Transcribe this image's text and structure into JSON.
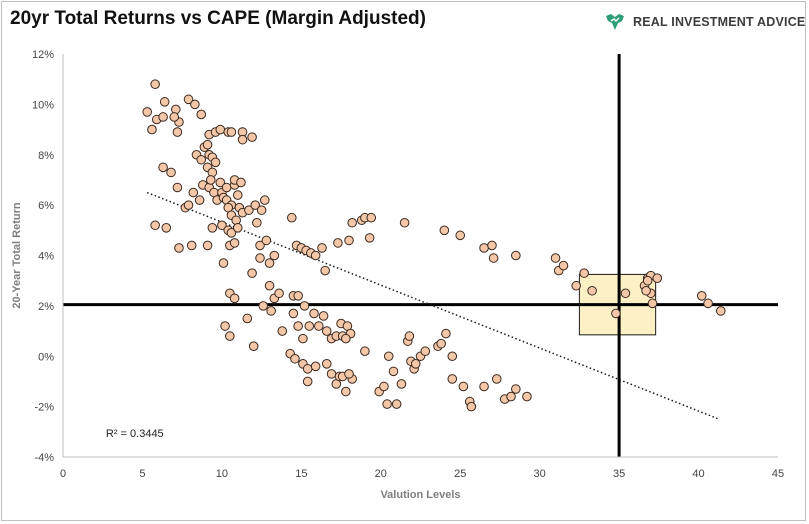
{
  "title": "20yr Total Returns vs CAPE (Margin Adjusted)",
  "brand": {
    "name": "REAL INVESTMENT ADVICE",
    "logo_icon": "bull-chart-icon",
    "logo_color": "#2e9e78"
  },
  "chart_data": {
    "type": "scatter",
    "title": "20yr Total Returns vs CAPE (Margin Adjusted)",
    "xlabel": "Valution Levels",
    "ylabel": "20-Year Total Return",
    "xlim": [
      0,
      45
    ],
    "ylim": [
      -4,
      12
    ],
    "x_ticks": [
      "0",
      "5",
      "10",
      "15",
      "20",
      "25",
      "30",
      "35",
      "40",
      "45"
    ],
    "y_ticks": [
      "-4%",
      "-2%",
      "0%",
      "2%",
      "4%",
      "6%",
      "8%",
      "10%",
      "12%"
    ],
    "grid": false,
    "legend": "none",
    "marker_color": "#f4c7a8",
    "marker_edge": "#3a2a20",
    "r_squared_label": "R² = 0.3445",
    "trendline": {
      "style": "dotted",
      "x": [
        5.3,
        41.3
      ],
      "y": [
        6.5,
        -2.5
      ]
    },
    "reference_lines": {
      "vertical_x": 35,
      "horizontal_y": [
        2.05,
        2.05
      ]
    },
    "highlight_box": {
      "x": [
        32.5,
        37.3
      ],
      "y": [
        0.85,
        3.25
      ],
      "fill": "#fdf0c4"
    },
    "points": [
      [
        5.8,
        10.8
      ],
      [
        5.3,
        9.7
      ],
      [
        5.9,
        9.4
      ],
      [
        5.6,
        9.0
      ],
      [
        6.4,
        10.1
      ],
      [
        6.3,
        9.5
      ],
      [
        7.1,
        9.8
      ],
      [
        7.3,
        9.3
      ],
      [
        7.0,
        9.5
      ],
      [
        7.2,
        8.9
      ],
      [
        7.9,
        10.2
      ],
      [
        8.3,
        10.0
      ],
      [
        8.7,
        9.6
      ],
      [
        9.2,
        8.8
      ],
      [
        9.6,
        8.9
      ],
      [
        9.9,
        9.0
      ],
      [
        10.4,
        8.9
      ],
      [
        10.6,
        8.9
      ],
      [
        11.3,
        8.9
      ],
      [
        11.3,
        8.6
      ],
      [
        11.9,
        8.7
      ],
      [
        8.4,
        8.0
      ],
      [
        8.7,
        7.8
      ],
      [
        8.9,
        8.3
      ],
      [
        9.1,
        8.4
      ],
      [
        9.2,
        8.0
      ],
      [
        9.4,
        7.9
      ],
      [
        9.6,
        7.7
      ],
      [
        9.1,
        7.5
      ],
      [
        9.4,
        7.3
      ],
      [
        6.3,
        7.5
      ],
      [
        6.8,
        7.3
      ],
      [
        7.2,
        6.7
      ],
      [
        7.7,
        5.9
      ],
      [
        7.9,
        6.0
      ],
      [
        8.2,
        6.5
      ],
      [
        8.6,
        6.2
      ],
      [
        8.8,
        6.8
      ],
      [
        9.2,
        6.7
      ],
      [
        9.3,
        7.0
      ],
      [
        9.5,
        6.5
      ],
      [
        9.7,
        6.2
      ],
      [
        9.9,
        6.9
      ],
      [
        10.0,
        6.5
      ],
      [
        10.1,
        6.3
      ],
      [
        10.3,
        6.2
      ],
      [
        10.3,
        6.7
      ],
      [
        10.6,
        6.0
      ],
      [
        10.8,
        6.8
      ],
      [
        10.8,
        7.0
      ],
      [
        11.0,
        6.4
      ],
      [
        11.2,
        6.9
      ],
      [
        10.4,
        5.9
      ],
      [
        10.6,
        5.6
      ],
      [
        10.9,
        5.4
      ],
      [
        11.1,
        5.9
      ],
      [
        11.3,
        5.7
      ],
      [
        11.7,
        5.8
      ],
      [
        12.1,
        6.0
      ],
      [
        12.5,
        5.8
      ],
      [
        12.7,
        6.2
      ],
      [
        9.4,
        5.1
      ],
      [
        10.0,
        5.2
      ],
      [
        10.4,
        5.0
      ],
      [
        10.6,
        4.9
      ],
      [
        11.0,
        5.1
      ],
      [
        12.2,
        5.3
      ],
      [
        12.4,
        4.4
      ],
      [
        12.8,
        4.6
      ],
      [
        5.8,
        5.2
      ],
      [
        6.5,
        5.1
      ],
      [
        7.3,
        4.3
      ],
      [
        8.1,
        4.4
      ],
      [
        9.1,
        4.4
      ],
      [
        10.1,
        3.7
      ],
      [
        10.5,
        4.4
      ],
      [
        10.8,
        4.5
      ],
      [
        11.9,
        3.3
      ],
      [
        12.4,
        3.9
      ],
      [
        13.0,
        3.7
      ],
      [
        13.3,
        4.0
      ],
      [
        14.4,
        5.5
      ],
      [
        14.7,
        4.4
      ],
      [
        15.0,
        4.3
      ],
      [
        15.3,
        4.2
      ],
      [
        15.6,
        4.1
      ],
      [
        15.9,
        4.0
      ],
      [
        16.3,
        4.3
      ],
      [
        16.5,
        3.4
      ],
      [
        17.3,
        4.5
      ],
      [
        18.0,
        4.6
      ],
      [
        18.2,
        5.3
      ],
      [
        18.8,
        5.4
      ],
      [
        19.0,
        5.5
      ],
      [
        19.4,
        5.5
      ],
      [
        19.3,
        4.7
      ],
      [
        21.5,
        5.3
      ],
      [
        24.0,
        5.0
      ],
      [
        25.0,
        4.8
      ],
      [
        26.5,
        4.3
      ],
      [
        27.0,
        4.4
      ],
      [
        27.1,
        3.9
      ],
      [
        28.5,
        4.0
      ],
      [
        10.5,
        2.5
      ],
      [
        10.8,
        2.3
      ],
      [
        12.6,
        2.0
      ],
      [
        13.0,
        2.8
      ],
      [
        13.3,
        2.3
      ],
      [
        13.6,
        2.5
      ],
      [
        14.5,
        2.4
      ],
      [
        14.8,
        2.4
      ],
      [
        15.2,
        2.0
      ],
      [
        13.1,
        1.8
      ],
      [
        10.2,
        1.2
      ],
      [
        10.5,
        0.8
      ],
      [
        11.6,
        1.5
      ],
      [
        12.0,
        0.4
      ],
      [
        13.8,
        1.0
      ],
      [
        14.5,
        1.7
      ],
      [
        14.8,
        1.2
      ],
      [
        15.1,
        0.7
      ],
      [
        15.5,
        1.2
      ],
      [
        15.8,
        1.7
      ],
      [
        16.1,
        1.2
      ],
      [
        16.4,
        1.6
      ],
      [
        16.6,
        1.0
      ],
      [
        16.9,
        0.7
      ],
      [
        17.2,
        0.8
      ],
      [
        17.6,
        0.8
      ],
      [
        17.5,
        1.3
      ],
      [
        17.9,
        1.2
      ],
      [
        18.1,
        0.9
      ],
      [
        17.8,
        0.7
      ],
      [
        14.3,
        0.1
      ],
      [
        14.6,
        -0.1
      ],
      [
        15.1,
        -0.3
      ],
      [
        15.4,
        -0.5
      ],
      [
        15.9,
        -0.4
      ],
      [
        15.4,
        -1.0
      ],
      [
        16.6,
        -0.3
      ],
      [
        16.9,
        -0.7
      ],
      [
        17.2,
        -1.1
      ],
      [
        17.4,
        -0.8
      ],
      [
        17.6,
        -0.8
      ],
      [
        17.8,
        -1.4
      ],
      [
        18.2,
        -0.9
      ],
      [
        18.0,
        -0.7
      ],
      [
        19.0,
        0.2
      ],
      [
        19.9,
        -1.4
      ],
      [
        20.2,
        -1.2
      ],
      [
        20.8,
        -0.6
      ],
      [
        21.0,
        -1.9
      ],
      [
        20.4,
        -1.9
      ],
      [
        21.3,
        -1.1
      ],
      [
        21.7,
        0.6
      ],
      [
        21.9,
        -0.2
      ],
      [
        22.1,
        -0.5
      ],
      [
        22.5,
        0.0
      ],
      [
        22.8,
        0.2
      ],
      [
        22.2,
        -0.3
      ],
      [
        20.5,
        0.0
      ],
      [
        21.8,
        0.8
      ],
      [
        23.6,
        0.4
      ],
      [
        23.8,
        0.5
      ],
      [
        24.1,
        0.9
      ],
      [
        24.5,
        0.0
      ],
      [
        24.5,
        -0.9
      ],
      [
        25.2,
        -1.2
      ],
      [
        25.6,
        -1.8
      ],
      [
        25.7,
        -2.0
      ],
      [
        26.5,
        -1.2
      ],
      [
        27.3,
        -0.9
      ],
      [
        27.8,
        -1.7
      ],
      [
        28.2,
        -1.6
      ],
      [
        28.5,
        -1.3
      ],
      [
        29.2,
        -1.6
      ],
      [
        31.0,
        3.9
      ],
      [
        31.2,
        3.4
      ],
      [
        31.5,
        3.6
      ],
      [
        32.8,
        3.3
      ],
      [
        32.3,
        2.8
      ],
      [
        33.3,
        2.6
      ],
      [
        36.6,
        2.8
      ],
      [
        36.8,
        3.1
      ],
      [
        37.0,
        3.2
      ],
      [
        37.4,
        3.1
      ],
      [
        34.8,
        1.7
      ],
      [
        35.4,
        2.5
      ],
      [
        36.8,
        3.0
      ],
      [
        37.0,
        2.5
      ],
      [
        37.1,
        2.1
      ],
      [
        36.7,
        2.6
      ],
      [
        40.2,
        2.4
      ],
      [
        40.6,
        2.1
      ],
      [
        41.4,
        1.8
      ]
    ]
  }
}
